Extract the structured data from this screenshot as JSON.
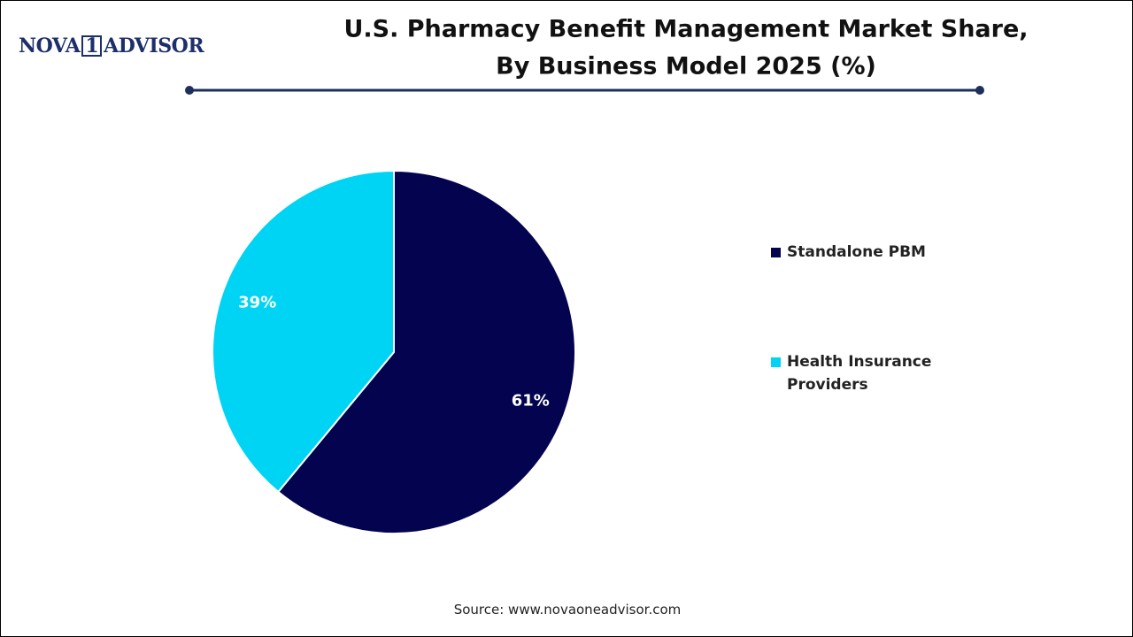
{
  "logo": {
    "left": "NOVA",
    "mark": "1",
    "right": "ADVISOR"
  },
  "chart_data": {
    "type": "pie",
    "title_lines": [
      "U.S. Pharmacy Benefit Management Market Share,",
      "By Business Model 2025 (%)"
    ],
    "categories": [
      "Standalone PBM",
      "Health Insurance Providers"
    ],
    "values": [
      61,
      39
    ],
    "value_labels": [
      "61%",
      "39%"
    ],
    "colors": [
      "#03034f",
      "#00d4f5"
    ],
    "legend": "right"
  },
  "source": "Source: www.novaoneadvisor.com"
}
